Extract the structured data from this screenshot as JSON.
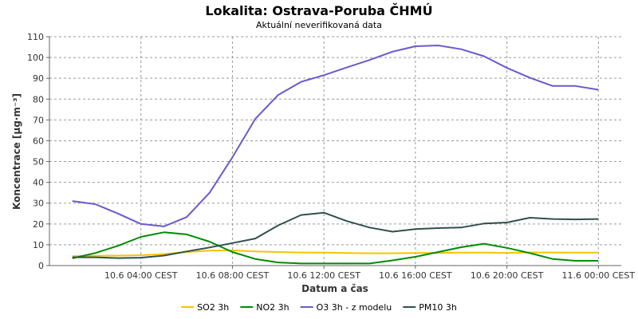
{
  "chart_data": {
    "type": "line",
    "title": "Lokalita: Ostrava-Poruba ČHMÚ",
    "subtitle": "Aktuální neverifikovaná data",
    "xlabel": "Datum a čas",
    "ylabel": "Koncentrace [µg·m⁻³]",
    "ylim": [
      0,
      110
    ],
    "y_ticks": [
      0,
      10,
      20,
      30,
      40,
      50,
      60,
      70,
      80,
      90,
      100,
      110
    ],
    "x_range": [
      0,
      25
    ],
    "x_ticks": [
      {
        "x": 4,
        "label": "10.6 04:00 CEST"
      },
      {
        "x": 8,
        "label": "10.6 08:00 CEST"
      },
      {
        "x": 12,
        "label": "10.6 12:00 CEST"
      },
      {
        "x": 16,
        "label": "10.6 16:00 CEST"
      },
      {
        "x": 20,
        "label": "10.6 20:00 CEST"
      },
      {
        "x": 24,
        "label": "11.6 00:00 CEST"
      }
    ],
    "grid": true,
    "legend_position": "bottom",
    "x": [
      1,
      2,
      3,
      4,
      5,
      6,
      7,
      8,
      9,
      10,
      11,
      12,
      13,
      14,
      15,
      16,
      17,
      18,
      19,
      20,
      21,
      22,
      23,
      24
    ],
    "series": [
      {
        "name": "SO2 3h",
        "color": "#f5c400",
        "values": [
          4.5,
          4.7,
          4.8,
          5.0,
          5.5,
          6.5,
          7.2,
          7.3,
          6.8,
          6.5,
          6.3,
          6.2,
          6.0,
          5.9,
          5.9,
          6.0,
          6.1,
          6.2,
          6.2,
          6.1,
          6.3,
          6.3,
          6.2,
          6.2
        ]
      },
      {
        "name": "NO2 3h",
        "color": "#008c00",
        "values": [
          3.5,
          6.0,
          9.5,
          13.8,
          16.0,
          15.0,
          11.5,
          6.5,
          3.2,
          1.5,
          1.0,
          1.0,
          1.0,
          1.0,
          2.5,
          4.2,
          6.5,
          8.8,
          10.5,
          8.5,
          6.0,
          3.2,
          2.3,
          2.3
        ]
      },
      {
        "name": "O3 3h - z modelu",
        "color": "#6a5acd",
        "values": [
          31.0,
          29.5,
          25.0,
          20.0,
          18.8,
          23.3,
          35.0,
          52.0,
          70.5,
          82.0,
          88.3,
          91.5,
          95.2,
          98.8,
          102.8,
          105.4,
          105.8,
          104.0,
          100.6,
          95.0,
          90.3,
          86.3,
          86.3,
          84.5
        ]
      },
      {
        "name": "PM10 3h",
        "color": "#2f4f4f",
        "values": [
          4.0,
          4.0,
          3.6,
          3.8,
          4.8,
          6.8,
          8.7,
          10.8,
          13.0,
          19.3,
          24.3,
          25.4,
          21.4,
          18.3,
          16.3,
          17.5,
          18.0,
          18.3,
          20.2,
          20.7,
          23.0,
          22.4,
          22.2,
          22.4
        ]
      }
    ]
  }
}
